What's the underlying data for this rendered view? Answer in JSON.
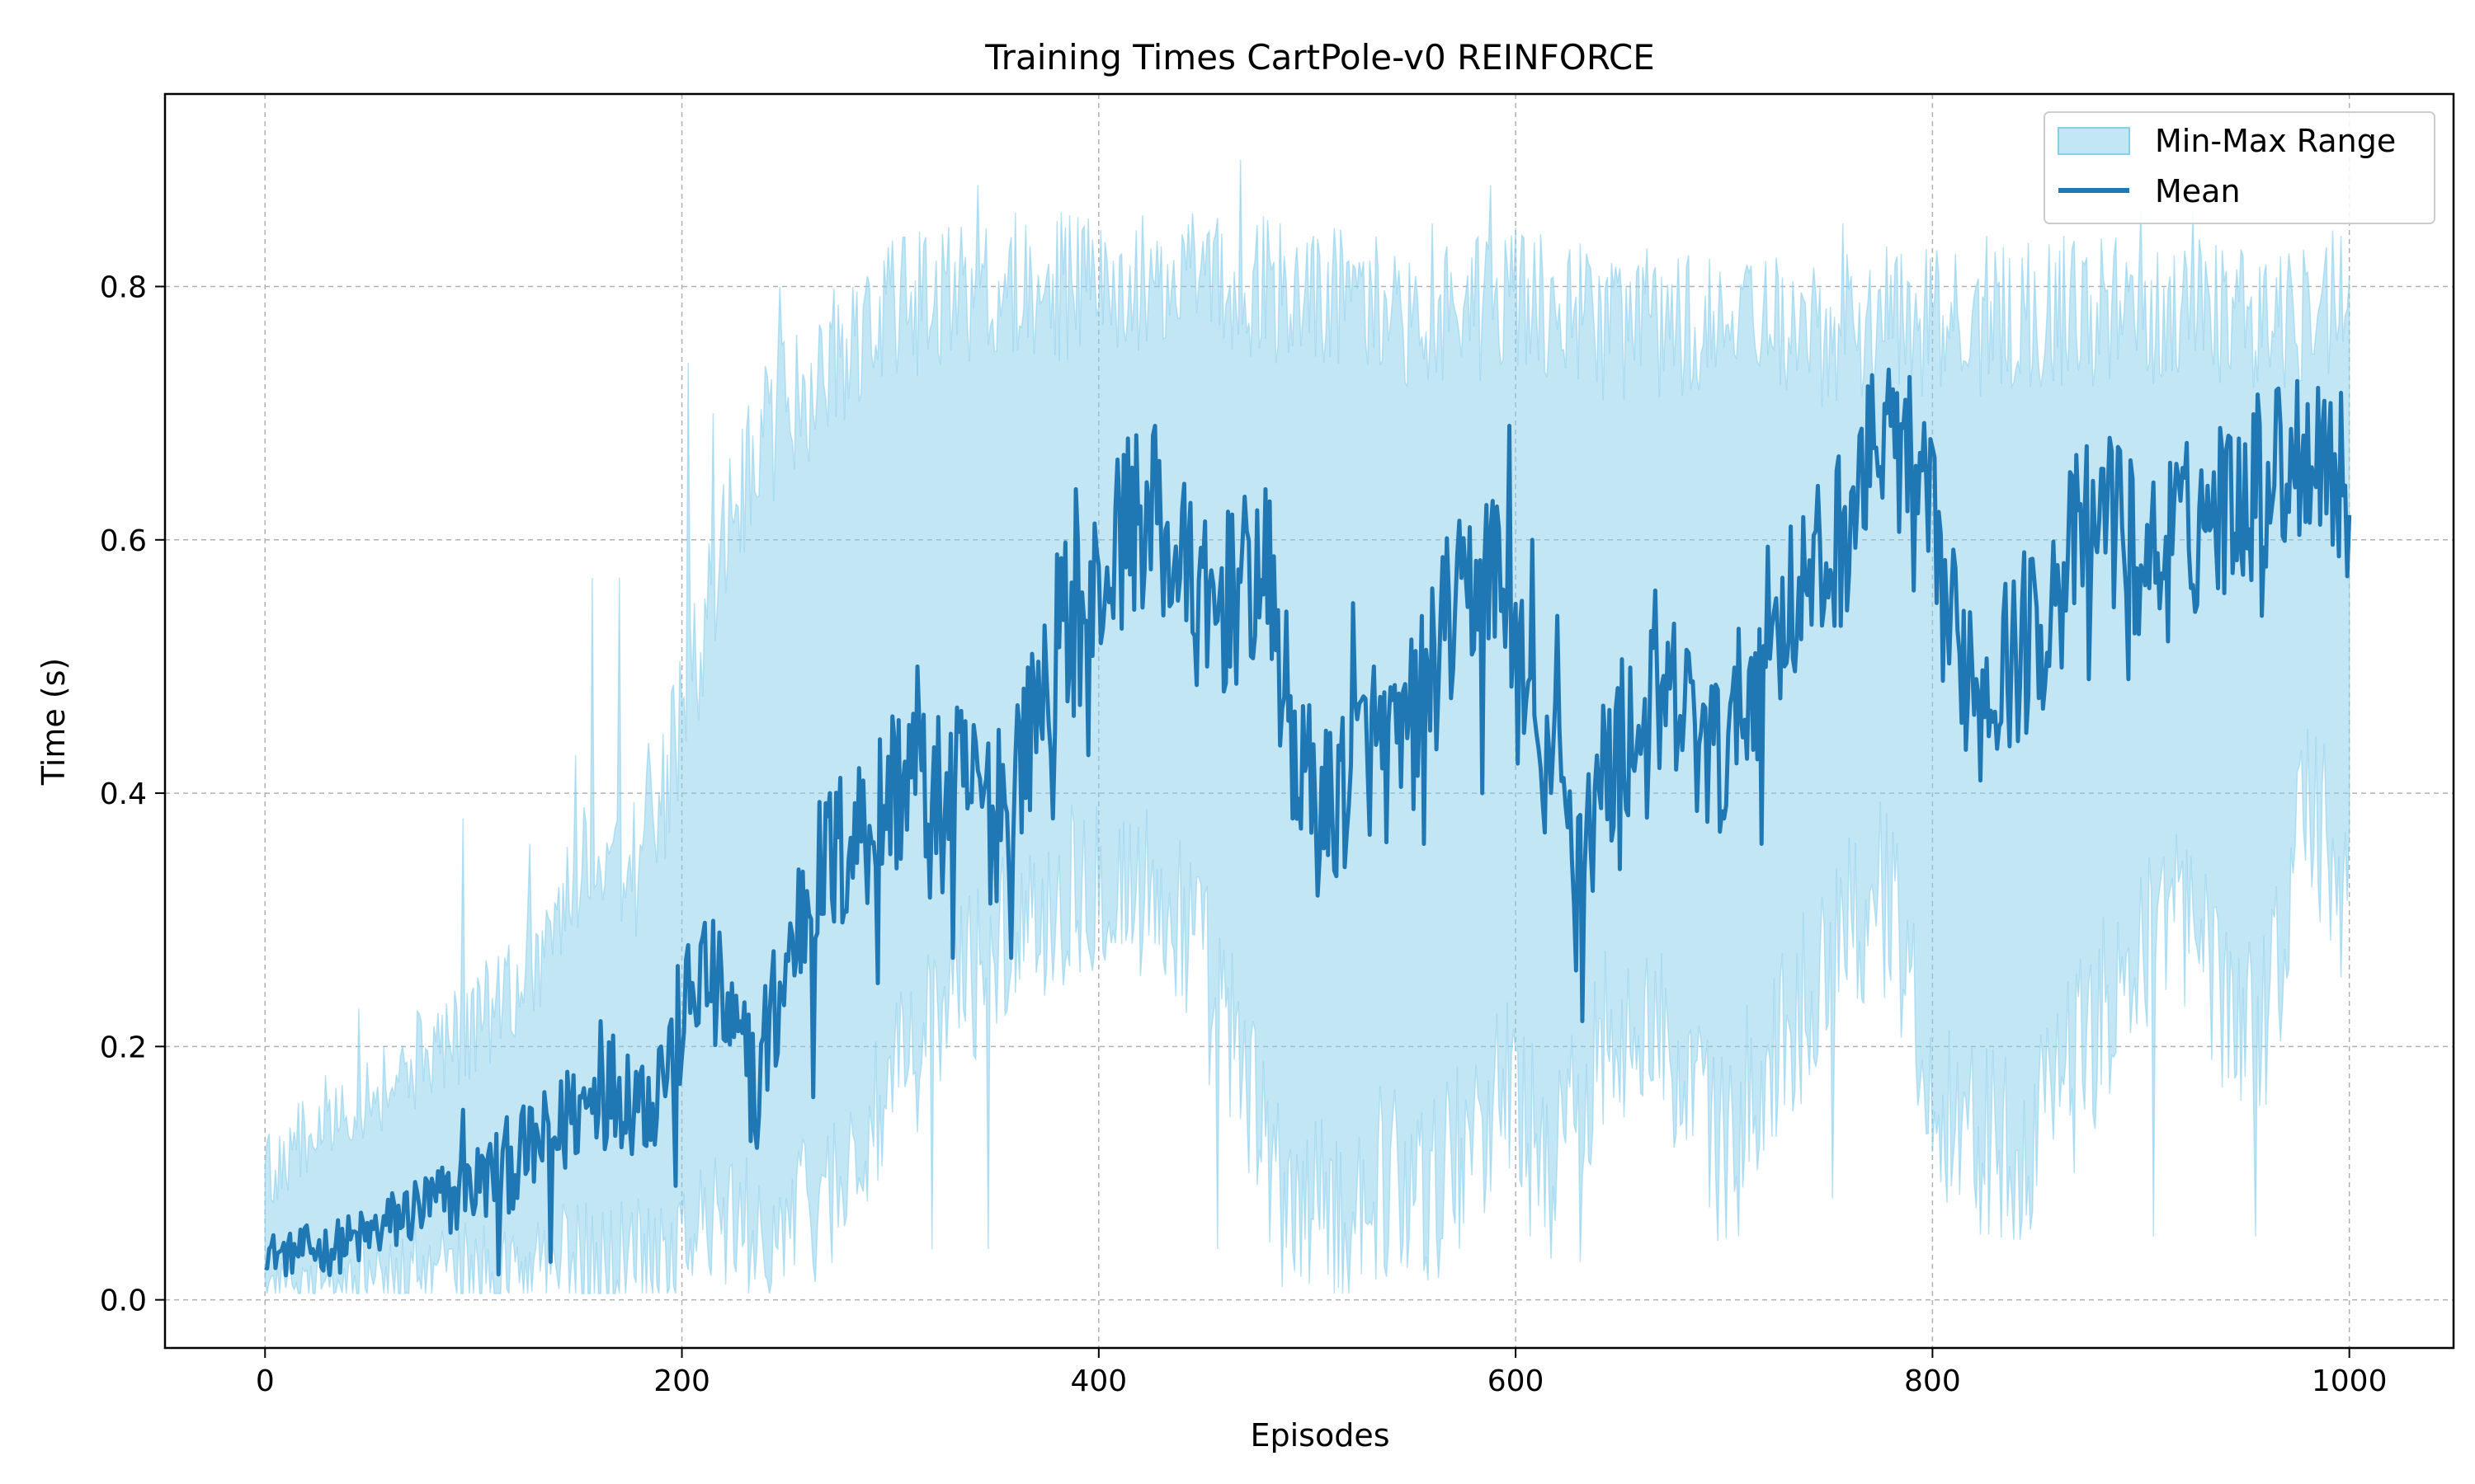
{
  "chart_data": {
    "type": "line",
    "title": "Training Times CartPole-v0 REINFORCE",
    "xlabel": "Episodes",
    "ylabel": "Time (s)",
    "xlim": [
      -48,
      1050
    ],
    "ylim": [
      -0.038,
      0.952
    ],
    "xticks": [
      0,
      200,
      400,
      600,
      800,
      1000
    ],
    "yticks": [
      0.0,
      0.2,
      0.4,
      0.6,
      0.8
    ],
    "xtick_labels": [
      "0",
      "200",
      "400",
      "600",
      "800",
      "1000"
    ],
    "ytick_labels": [
      "0.0",
      "0.2",
      "0.4",
      "0.6",
      "0.8"
    ],
    "grid": true,
    "legend_position": "top-right",
    "series": [
      {
        "name": "Min-Max Range",
        "kind": "band",
        "color": "#87ceeb",
        "x": [
          0,
          20,
          40,
          60,
          80,
          100,
          120,
          140,
          160,
          180,
          200,
          220,
          240,
          260,
          280,
          300,
          320,
          340,
          360,
          380,
          400,
          420,
          440,
          460,
          480,
          500,
          520,
          540,
          560,
          580,
          600,
          620,
          640,
          660,
          680,
          700,
          720,
          740,
          760,
          780,
          800,
          820,
          840,
          860,
          880,
          900,
          920,
          940,
          960,
          980,
          1000
        ],
        "lower": [
          0.02,
          0.02,
          0.02,
          0.02,
          0.02,
          0.02,
          0.02,
          0.03,
          0.03,
          0.04,
          0.05,
          0.06,
          0.05,
          0.07,
          0.1,
          0.16,
          0.22,
          0.26,
          0.3,
          0.32,
          0.34,
          0.32,
          0.3,
          0.22,
          0.12,
          0.06,
          0.07,
          0.1,
          0.08,
          0.14,
          0.17,
          0.1,
          0.2,
          0.24,
          0.16,
          0.12,
          0.18,
          0.24,
          0.3,
          0.32,
          0.16,
          0.13,
          0.12,
          0.16,
          0.22,
          0.28,
          0.3,
          0.24,
          0.22,
          0.4,
          0.3
        ],
        "upper": [
          0.1,
          0.13,
          0.16,
          0.17,
          0.2,
          0.22,
          0.25,
          0.3,
          0.36,
          0.34,
          0.45,
          0.6,
          0.68,
          0.72,
          0.75,
          0.78,
          0.79,
          0.8,
          0.8,
          0.8,
          0.8,
          0.8,
          0.8,
          0.8,
          0.8,
          0.79,
          0.79,
          0.78,
          0.78,
          0.78,
          0.79,
          0.78,
          0.77,
          0.77,
          0.77,
          0.76,
          0.77,
          0.76,
          0.77,
          0.78,
          0.77,
          0.77,
          0.78,
          0.78,
          0.78,
          0.78,
          0.79,
          0.78,
          0.77,
          0.78,
          0.8
        ],
        "peaks": [
          [
            19,
            0.14
          ],
          [
            45,
            0.23
          ],
          [
            95,
            0.38
          ],
          [
            127,
            0.36
          ],
          [
            149,
            0.43
          ],
          [
            157,
            0.57
          ],
          [
            170,
            0.57
          ],
          [
            184,
            0.44
          ],
          [
            203,
            0.74
          ],
          [
            215,
            0.7
          ],
          [
            247,
            0.8
          ],
          [
            266,
            0.77
          ],
          [
            282,
            0.8
          ],
          [
            300,
            0.8
          ],
          [
            342,
            0.88
          ],
          [
            378,
            0.81
          ],
          [
            425,
            0.83
          ],
          [
            468,
            0.9
          ],
          [
            503,
            0.84
          ],
          [
            560,
            0.85
          ],
          [
            588,
            0.88
          ],
          [
            613,
            0.81
          ],
          [
            663,
            0.83
          ],
          [
            720,
            0.82
          ],
          [
            757,
            0.85
          ],
          [
            826,
            0.84
          ],
          [
            863,
            0.84
          ],
          [
            900,
            0.86
          ],
          [
            925,
            0.86
          ],
          [
            996,
            0.84
          ]
        ],
        "troughs": [
          [
            320,
            0.04
          ],
          [
            347,
            0.04
          ],
          [
            457,
            0.04
          ],
          [
            488,
            0.01
          ],
          [
            575,
            0.06
          ],
          [
            607,
            0.05
          ],
          [
            631,
            0.03
          ],
          [
            707,
            0.05
          ],
          [
            752,
            0.08
          ],
          [
            868,
            0.1
          ],
          [
            906,
            0.05
          ],
          [
            955,
            0.05
          ]
        ]
      },
      {
        "name": "Mean",
        "kind": "line",
        "color": "#1f77b4",
        "x": [
          0,
          10,
          20,
          30,
          40,
          50,
          60,
          70,
          80,
          90,
          100,
          110,
          120,
          130,
          140,
          150,
          160,
          170,
          180,
          190,
          200,
          210,
          220,
          230,
          240,
          250,
          260,
          270,
          280,
          290,
          300,
          310,
          320,
          330,
          340,
          350,
          360,
          370,
          380,
          390,
          400,
          410,
          420,
          430,
          440,
          450,
          460,
          470,
          480,
          490,
          500,
          510,
          520,
          530,
          540,
          550,
          560,
          570,
          580,
          590,
          600,
          610,
          620,
          630,
          640,
          650,
          660,
          670,
          680,
          690,
          700,
          710,
          720,
          730,
          740,
          750,
          760,
          770,
          780,
          790,
          800,
          810,
          820,
          830,
          840,
          850,
          860,
          870,
          880,
          890,
          900,
          910,
          920,
          930,
          940,
          950,
          960,
          970,
          980,
          990,
          1000
        ],
        "values": [
          0.04,
          0.035,
          0.04,
          0.04,
          0.045,
          0.05,
          0.06,
          0.07,
          0.075,
          0.08,
          0.09,
          0.1,
          0.11,
          0.12,
          0.13,
          0.15,
          0.165,
          0.17,
          0.16,
          0.17,
          0.22,
          0.26,
          0.23,
          0.18,
          0.2,
          0.26,
          0.32,
          0.34,
          0.36,
          0.38,
          0.4,
          0.42,
          0.38,
          0.4,
          0.4,
          0.38,
          0.42,
          0.47,
          0.52,
          0.54,
          0.56,
          0.6,
          0.62,
          0.6,
          0.58,
          0.54,
          0.55,
          0.56,
          0.58,
          0.47,
          0.4,
          0.38,
          0.42,
          0.44,
          0.43,
          0.45,
          0.5,
          0.54,
          0.56,
          0.58,
          0.5,
          0.45,
          0.4,
          0.36,
          0.4,
          0.44,
          0.45,
          0.46,
          0.47,
          0.43,
          0.42,
          0.47,
          0.52,
          0.55,
          0.56,
          0.58,
          0.62,
          0.65,
          0.68,
          0.66,
          0.6,
          0.52,
          0.5,
          0.5,
          0.51,
          0.53,
          0.56,
          0.6,
          0.62,
          0.61,
          0.58,
          0.59,
          0.6,
          0.62,
          0.63,
          0.64,
          0.65,
          0.66,
          0.68,
          0.67,
          0.63
        ],
        "spikes": [
          [
            95,
            0.15
          ],
          [
            112,
            0.02
          ],
          [
            137,
            0.03
          ],
          [
            145,
            0.18
          ],
          [
            161,
            0.22
          ],
          [
            178,
            0.18
          ],
          [
            190,
            0.2
          ],
          [
            197,
            0.09
          ],
          [
            218,
            0.29
          ],
          [
            236,
            0.12
          ],
          [
            263,
            0.16
          ],
          [
            271,
            0.4
          ],
          [
            287,
            0.41
          ],
          [
            294,
            0.25
          ],
          [
            313,
            0.5
          ],
          [
            330,
            0.27
          ],
          [
            352,
            0.45
          ],
          [
            358,
            0.27
          ],
          [
            368,
            0.51
          ],
          [
            378,
            0.38
          ],
          [
            389,
            0.64
          ],
          [
            395,
            0.43
          ],
          [
            414,
            0.68
          ],
          [
            427,
            0.69
          ],
          [
            452,
            0.5
          ],
          [
            464,
            0.62
          ],
          [
            480,
            0.64
          ],
          [
            493,
            0.38
          ],
          [
            506,
            0.35
          ],
          [
            522,
            0.55
          ],
          [
            532,
            0.5
          ],
          [
            543,
            0.44
          ],
          [
            556,
            0.36
          ],
          [
            574,
            0.57
          ],
          [
            584,
            0.4
          ],
          [
            597,
            0.69
          ],
          [
            608,
            0.6
          ],
          [
            612,
            0.42
          ],
          [
            620,
            0.54
          ],
          [
            629,
            0.26
          ],
          [
            632,
            0.22
          ],
          [
            650,
            0.34
          ],
          [
            667,
            0.56
          ],
          [
            690,
            0.47
          ],
          [
            700,
            0.38
          ],
          [
            708,
            0.46
          ],
          [
            718,
            0.36
          ],
          [
            736,
            0.57
          ],
          [
            746,
            0.6
          ],
          [
            771,
            0.73
          ],
          [
            778,
            0.7
          ],
          [
            791,
            0.56
          ],
          [
            813,
            0.51
          ],
          [
            823,
            0.41
          ],
          [
            834,
            0.54
          ],
          [
            860,
            0.58
          ],
          [
            875,
            0.49
          ],
          [
            886,
            0.67
          ],
          [
            894,
            0.49
          ],
          [
            917,
            0.66
          ],
          [
            947,
            0.68
          ],
          [
            958,
            0.54
          ],
          [
            967,
            0.69
          ],
          [
            985,
            0.72
          ]
        ]
      }
    ]
  }
}
